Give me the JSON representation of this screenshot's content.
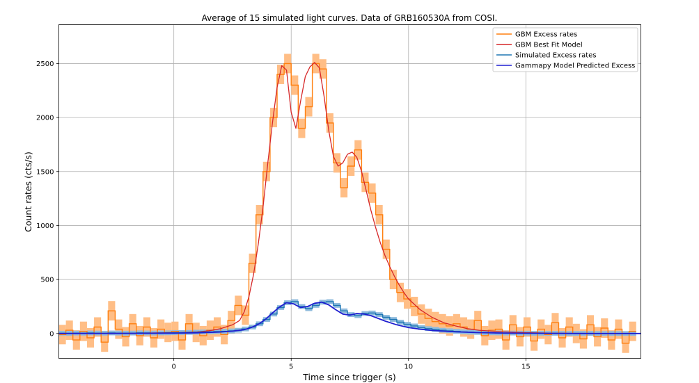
{
  "chart_data": {
    "type": "line",
    "title": "Average of 15 simulated light curves. Data of GRB160530A from COSI.",
    "xlabel": "Time since trigger (s)",
    "ylabel": "Count rates (cts/s)",
    "xlim": [
      -4.9,
      19.9
    ],
    "ylim": [
      -230,
      2860
    ],
    "xticks": [
      0,
      5,
      10,
      15
    ],
    "yticks": [
      0,
      500,
      1000,
      1500,
      2000,
      2500
    ],
    "grid": true,
    "legend_position": "top-right",
    "colors": {
      "gbm_excess": "#ff7f0e",
      "gbm_excess_band": "#ffbe86",
      "gbm_model": "#d62728",
      "sim_excess": "#1f77b4",
      "sim_excess_band": "#8fbbdd",
      "gammapy_model": "#1f1fd0"
    },
    "series": [
      {
        "name": "GBM Excess rates",
        "style": "step",
        "x": [
          -4.9,
          -4.6,
          -4.3,
          -4.0,
          -3.7,
          -3.4,
          -3.1,
          -2.8,
          -2.5,
          -2.2,
          -1.9,
          -1.6,
          -1.3,
          -1.0,
          -0.7,
          -0.4,
          -0.1,
          0.2,
          0.5,
          0.8,
          1.1,
          1.4,
          1.7,
          2.0,
          2.3,
          2.6,
          2.9,
          3.2,
          3.5,
          3.8,
          4.1,
          4.4,
          4.7,
          5.0,
          5.3,
          5.6,
          5.9,
          6.2,
          6.5,
          6.8,
          7.1,
          7.4,
          7.7,
          8.0,
          8.3,
          8.6,
          8.9,
          9.2,
          9.5,
          9.8,
          10.1,
          10.4,
          10.7,
          11.0,
          11.3,
          11.6,
          11.9,
          12.2,
          12.5,
          12.8,
          13.1,
          13.4,
          13.7,
          14.0,
          14.3,
          14.6,
          14.9,
          15.2,
          15.5,
          15.8,
          16.1,
          16.4,
          16.7,
          17.0,
          17.3,
          17.6,
          17.9,
          18.2,
          18.5,
          18.8,
          19.1,
          19.4
        ],
        "values": [
          -10,
          30,
          -60,
          20,
          -40,
          60,
          -80,
          210,
          40,
          -30,
          90,
          -20,
          60,
          -40,
          40,
          10,
          20,
          -60,
          90,
          10,
          -20,
          30,
          60,
          -10,
          120,
          260,
          170,
          650,
          1100,
          1500,
          2000,
          2400,
          2500,
          2300,
          1900,
          2100,
          2500,
          2450,
          1950,
          1580,
          1350,
          1550,
          1700,
          1400,
          1300,
          1100,
          780,
          500,
          380,
          320,
          250,
          180,
          140,
          110,
          90,
          70,
          90,
          60,
          40,
          120,
          -20,
          30,
          40,
          -60,
          80,
          -30,
          60,
          -70,
          40,
          -10,
          100,
          -40,
          60,
          0,
          -50,
          80,
          -30,
          50,
          -60,
          40,
          -90,
          20
        ],
        "error": 90
      },
      {
        "name": "GBM Best Fit Model",
        "style": "line",
        "x": [
          -4.9,
          -3,
          -1,
          0,
          1,
          1.5,
          2,
          2.5,
          2.8,
          3.0,
          3.2,
          3.4,
          3.6,
          3.8,
          4.0,
          4.2,
          4.4,
          4.6,
          4.8,
          5.0,
          5.2,
          5.4,
          5.6,
          5.8,
          6.0,
          6.2,
          6.4,
          6.6,
          6.8,
          7.0,
          7.2,
          7.4,
          7.6,
          7.8,
          8.0,
          8.2,
          8.4,
          8.6,
          8.8,
          9.0,
          9.2,
          9.4,
          9.6,
          9.8,
          10.0,
          10.5,
          11,
          11.5,
          12,
          12.5,
          13,
          14,
          15,
          16,
          17,
          18,
          19,
          19.9
        ],
        "values": [
          0,
          2,
          5,
          8,
          15,
          25,
          45,
          80,
          120,
          200,
          340,
          550,
          830,
          1170,
          1570,
          1950,
          2280,
          2480,
          2440,
          2050,
          1900,
          2150,
          2380,
          2470,
          2510,
          2460,
          2200,
          1880,
          1640,
          1550,
          1580,
          1660,
          1680,
          1630,
          1500,
          1320,
          1140,
          980,
          840,
          720,
          620,
          530,
          450,
          380,
          320,
          220,
          150,
          100,
          70,
          45,
          30,
          15,
          8,
          4,
          2,
          1,
          0,
          0
        ]
      },
      {
        "name": "Simulated Excess rates",
        "style": "step",
        "x": [
          -4.9,
          -4.6,
          -4.3,
          -4.0,
          -3.7,
          -3.4,
          -3.1,
          -2.8,
          -2.5,
          -2.2,
          -1.9,
          -1.6,
          -1.3,
          -1.0,
          -0.7,
          -0.4,
          -0.1,
          0.2,
          0.5,
          0.8,
          1.1,
          1.4,
          1.7,
          2.0,
          2.3,
          2.6,
          2.9,
          3.2,
          3.5,
          3.8,
          4.1,
          4.4,
          4.7,
          5.0,
          5.3,
          5.6,
          5.9,
          6.2,
          6.5,
          6.8,
          7.1,
          7.4,
          7.7,
          8.0,
          8.3,
          8.6,
          8.9,
          9.2,
          9.5,
          9.8,
          10.1,
          10.4,
          10.7,
          11.0,
          11.3,
          11.6,
          11.9,
          12.2,
          12.5,
          12.8,
          13.1,
          13.4,
          13.7,
          14.0,
          14.3,
          14.6,
          14.9,
          15.2,
          15.5,
          15.8,
          16.1,
          16.4,
          16.7,
          17.0,
          17.3,
          17.6,
          17.9,
          18.2,
          18.5,
          18.8,
          19.1,
          19.4
        ],
        "values": [
          3,
          2,
          4,
          3,
          5,
          4,
          3,
          5,
          4,
          3,
          4,
          6,
          5,
          4,
          5,
          6,
          8,
          9,
          10,
          12,
          14,
          15,
          18,
          20,
          24,
          30,
          42,
          60,
          90,
          130,
          180,
          240,
          285,
          295,
          250,
          230,
          260,
          290,
          295,
          260,
          210,
          175,
          165,
          185,
          190,
          175,
          150,
          130,
          105,
          85,
          70,
          55,
          45,
          38,
          30,
          25,
          20,
          15,
          12,
          10,
          8,
          6,
          5,
          4,
          4,
          3,
          3,
          2,
          2,
          2,
          2,
          1,
          1,
          1,
          1,
          1,
          0,
          0,
          0,
          0,
          0,
          0
        ],
        "error": 22
      },
      {
        "name": "Gammapy Model Predicted Excess",
        "style": "line",
        "x": [
          -4.9,
          -2,
          0,
          1,
          2,
          2.5,
          3.0,
          3.3,
          3.6,
          3.9,
          4.2,
          4.5,
          4.8,
          5.1,
          5.4,
          5.7,
          6.0,
          6.3,
          6.6,
          6.9,
          7.2,
          7.5,
          7.8,
          8.1,
          8.4,
          8.7,
          9.0,
          9.5,
          10,
          10.5,
          11,
          12,
          13,
          14,
          15,
          16,
          17,
          18,
          19,
          19.9
        ],
        "values": [
          0,
          1,
          3,
          6,
          14,
          22,
          35,
          55,
          85,
          130,
          190,
          245,
          285,
          275,
          240,
          250,
          280,
          290,
          265,
          220,
          180,
          170,
          185,
          180,
          165,
          140,
          115,
          80,
          55,
          40,
          28,
          15,
          8,
          4,
          2,
          1,
          0,
          0,
          0,
          0
        ]
      }
    ]
  }
}
